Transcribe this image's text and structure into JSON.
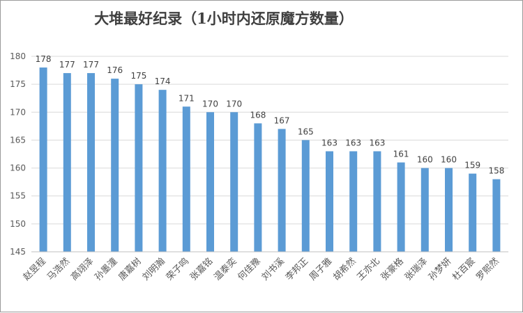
{
  "chart_data": {
    "type": "bar",
    "title": "大堆最好纪录（1小时内还原魔方数量）",
    "xlabel": "",
    "ylabel": "",
    "ylim": [
      145,
      180
    ],
    "yticks": [
      145,
      150,
      155,
      160,
      165,
      170,
      175,
      180
    ],
    "grid": true,
    "legend": "none",
    "bar_color": "#5B9BD5",
    "categories": [
      "赵昱程",
      "马浩然",
      "高翊泽",
      "孙墨潼",
      "唐嘉树",
      "刘明瀚",
      "荣子鸣",
      "张嘉铭",
      "温泰奕",
      "何佳豫",
      "刘书溪",
      "李邦正",
      "周子雅",
      "胡希然",
      "王亦北",
      "张豪格",
      "张瑞泽",
      "孙梦妍",
      "杜百宸",
      "罗熙然"
    ],
    "values": [
      178,
      177,
      177,
      176,
      175,
      174,
      171,
      170,
      170,
      168,
      167,
      165,
      163,
      163,
      163,
      161,
      160,
      160,
      159,
      158
    ]
  }
}
